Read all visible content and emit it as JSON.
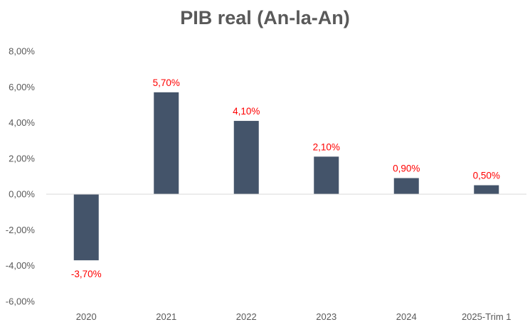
{
  "chart_data": {
    "type": "bar",
    "title": "PIB real (An-la-An)",
    "categories": [
      "2020",
      "2021",
      "2022",
      "2023",
      "2024",
      "2025-Trim 1"
    ],
    "values": [
      -3.7,
      5.7,
      4.1,
      2.1,
      0.9,
      0.5
    ],
    "data_labels": [
      "-3,70%",
      "5,70%",
      "4,10%",
      "2,10%",
      "0,90%",
      "0,50%"
    ],
    "ylim": [
      -6,
      8
    ],
    "yticks": [
      8,
      6,
      4,
      2,
      0,
      -2,
      -4,
      -6
    ],
    "ytick_labels": [
      "8,00%",
      "6,00%",
      "4,00%",
      "2,00%",
      "0,00%",
      "-2,00%",
      "-4,00%",
      "-6,00%"
    ],
    "xlabel": "",
    "ylabel": "",
    "grid": false,
    "legend": "none",
    "colors": {
      "bar": "#44546a",
      "data_label": "#ff0000",
      "axis_text": "#595959",
      "axis_line": "#d9d9d9"
    }
  }
}
